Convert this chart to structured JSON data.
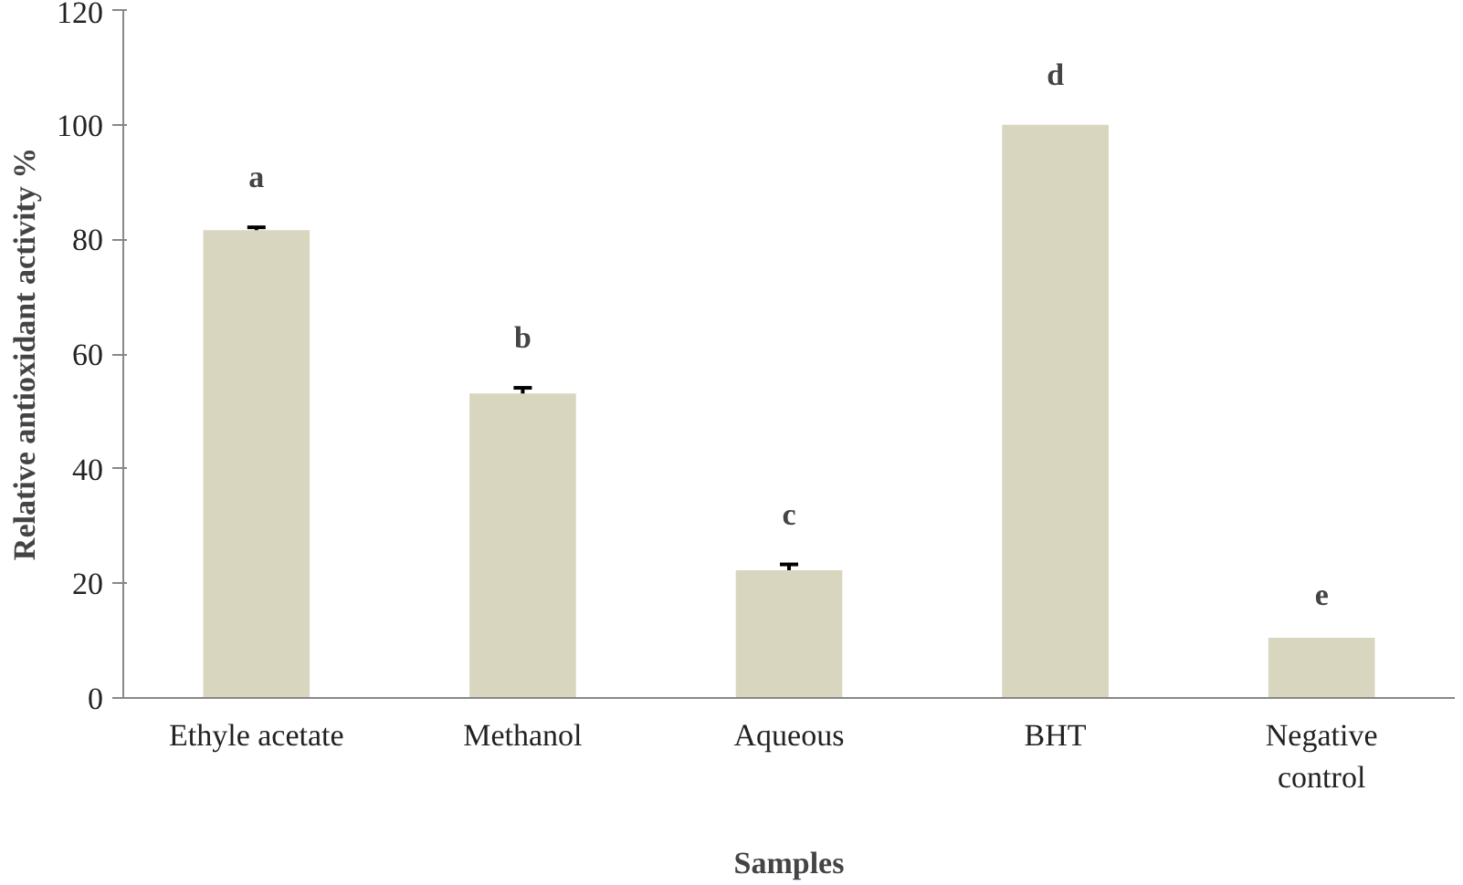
{
  "chart_data": {
    "type": "bar",
    "xlabel": "Samples",
    "ylabel": "Relative antioxidant activity %",
    "categories": [
      "Ethyle acetate",
      "Methanol",
      "Aqueous",
      "BHT",
      "Negative\ncontrol"
    ],
    "values": [
      81.6,
      53.1,
      22.3,
      100,
      10.5
    ],
    "errors": [
      0.5,
      1,
      1,
      null,
      null
    ],
    "color": "#d9d6c0",
    "ylim": [
      0,
      120
    ],
    "yticks": [
      0,
      20,
      40,
      60,
      80,
      100,
      120
    ],
    "grid": false,
    "value_labels": [
      "a",
      "b",
      "c",
      "d",
      "e"
    ]
  }
}
